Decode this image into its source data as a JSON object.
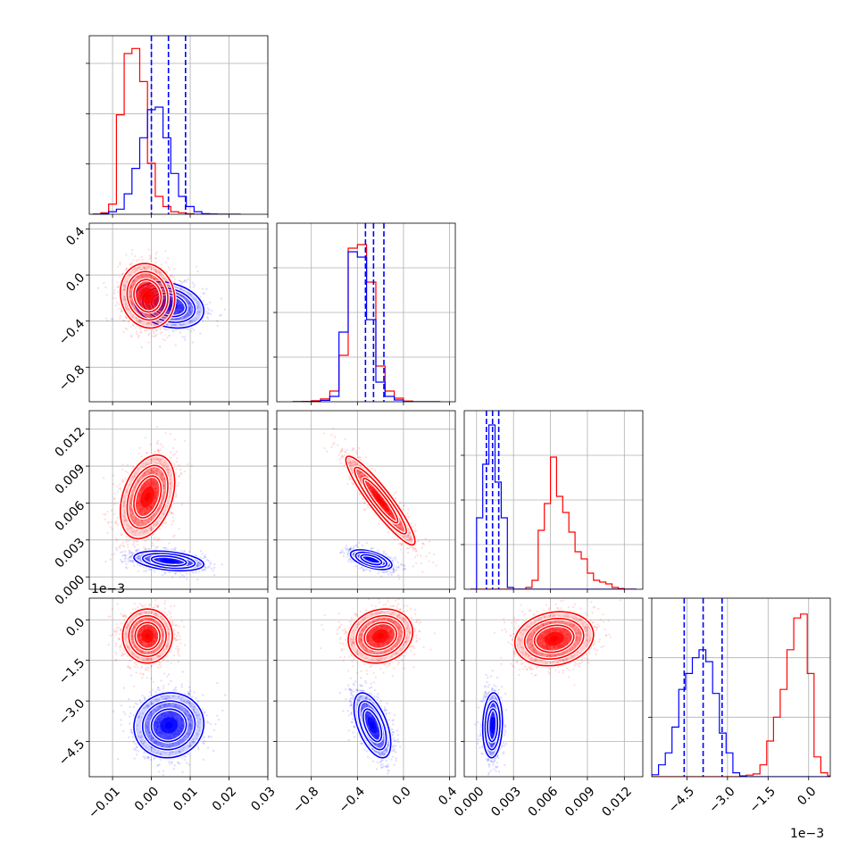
{
  "chart_data": {
    "type": "corner",
    "colors": {
      "series_a": "#ff0000",
      "series_b": "#0000ff",
      "grid": "#b0b0b0"
    },
    "offset_labels": {
      "row3": "1e−3",
      "col3": "1e−3"
    },
    "params": [
      {
        "range": [
          -0.016,
          0.03
        ],
        "ticks": [
          -0.01,
          0.0,
          0.01,
          0.02,
          0.03
        ],
        "tick_labels": [
          "−0.01",
          "0.00",
          "0.01",
          "0.02",
          "0.03"
        ]
      },
      {
        "range": [
          -1.1,
          0.45
        ],
        "ticks": [
          -0.8,
          -0.4,
          0.0,
          0.4
        ],
        "tick_labels": [
          "−0.8",
          "−0.4",
          "0.0",
          "0.4"
        ]
      },
      {
        "range": [
          -0.001,
          0.0135
        ],
        "ticks": [
          0.0,
          0.003,
          0.006,
          0.009,
          0.012
        ],
        "tick_labels": [
          "0.000",
          "0.003",
          "0.006",
          "0.009",
          "0.012"
        ]
      },
      {
        "range": [
          -0.0058,
          0.0008
        ],
        "ticks": [
          -0.0045,
          -0.003,
          -0.0015,
          0.0
        ],
        "tick_labels": [
          "−4.5",
          "−3.0",
          "−1.5",
          "0.0"
        ]
      }
    ],
    "diagonal": [
      {
        "lines": [
          0.0,
          0.0044,
          0.0088
        ],
        "bins": [
          -0.015,
          -0.013,
          -0.011,
          -0.009,
          -0.007,
          -0.005,
          -0.003,
          -0.001,
          0.001,
          0.003,
          0.005,
          0.007,
          0.009,
          0.011,
          0.013,
          0.015,
          0.017,
          0.019,
          0.021,
          0.023
        ],
        "series_a": [
          0.005,
          0.03,
          0.2,
          1.95,
          3.15,
          3.25,
          2.6,
          1.0,
          0.35,
          0.15,
          0.05,
          0.03,
          0.01,
          0.0,
          0.0,
          0.0,
          0.0,
          0.0,
          0.0
        ],
        "series_b": [
          0.0,
          0.01,
          0.05,
          0.1,
          0.4,
          0.9,
          1.5,
          2.05,
          2.1,
          1.5,
          0.8,
          0.35,
          0.15,
          0.05,
          0.01,
          0.005,
          0.0,
          0.0,
          0.0
        ],
        "ymax": 3.5
      },
      {
        "lines": [
          -0.33,
          -0.26,
          -0.17
        ],
        "bins": [
          -0.96,
          -0.88,
          -0.8,
          -0.72,
          -0.64,
          -0.56,
          -0.48,
          -0.4,
          -0.32,
          -0.24,
          -0.16,
          -0.08,
          0.0,
          0.08,
          0.16,
          0.24,
          0.32
        ],
        "series_a": [
          0.005,
          0.01,
          0.03,
          0.08,
          0.3,
          1.3,
          4.3,
          4.4,
          3.35,
          1.0,
          0.3,
          0.1,
          0.02,
          0.0,
          0.0,
          0.0
        ],
        "series_b": [
          0.0,
          0.0,
          0.01,
          0.04,
          0.15,
          1.95,
          4.2,
          4.05,
          2.3,
          0.55,
          0.15,
          0.05,
          0.0,
          0.0,
          0.0,
          0.0
        ],
        "ymax": 5.0
      },
      {
        "lines": [
          0.0008,
          0.0013,
          0.0018
        ],
        "bins": [
          -0.0005,
          0.0,
          0.0005,
          0.001,
          0.0015,
          0.002,
          0.0025,
          0.003,
          0.0035,
          0.004,
          0.0045,
          0.005,
          0.0055,
          0.006,
          0.0065,
          0.007,
          0.0075,
          0.008,
          0.0085,
          0.009,
          0.0095,
          0.01,
          0.0105,
          0.011,
          0.0115,
          0.012,
          0.0125,
          0.013
        ],
        "series_a": [
          0.0,
          0.0,
          0.0,
          0.0,
          0.0,
          0.0,
          0.0,
          0.0,
          0.0,
          0.05,
          0.25,
          1.65,
          2.4,
          3.7,
          2.6,
          2.15,
          1.6,
          1.05,
          0.85,
          0.45,
          0.25,
          0.2,
          0.15,
          0.05,
          0.02,
          0.0,
          0.0
        ],
        "series_b": [
          0.0,
          2.0,
          3.5,
          4.6,
          3.0,
          2.0,
          0.05,
          0.0,
          0.0,
          0.0,
          0.0,
          0.0,
          0.0,
          0.0,
          0.0,
          0.0,
          0.0,
          0.0,
          0.0,
          0.0,
          0.0,
          0.0,
          0.0,
          0.0,
          0.0,
          0.0,
          0.0
        ],
        "ymax": 5.0
      },
      {
        "lines": [
          -0.0046,
          -0.0039,
          -0.0032
        ],
        "bins": [
          -0.0058,
          -0.00555,
          -0.0053,
          -0.00505,
          -0.0048,
          -0.00455,
          -0.0043,
          -0.00405,
          -0.0038,
          -0.00355,
          -0.0033,
          -0.00305,
          -0.0028,
          -0.00255,
          -0.0023,
          -0.00205,
          -0.0018,
          -0.00155,
          -0.0013,
          -0.00105,
          -0.0008,
          -0.00055,
          -0.0003,
          -5e-05,
          0.0002,
          0.00045,
          0.0007,
          0.00095
        ],
        "series_a": [
          0.0,
          0.0,
          0.0,
          0.0,
          0.0,
          0.0,
          0.0,
          0.0,
          0.0,
          0.0,
          0.0,
          0.0,
          0.0,
          0.01,
          0.04,
          0.07,
          0.3,
          0.9,
          1.5,
          2.2,
          3.2,
          4.0,
          4.1,
          2.6,
          0.5,
          0.1,
          0.02
        ],
        "series_b": [
          0.05,
          0.3,
          0.6,
          1.25,
          2.2,
          2.6,
          3.0,
          3.2,
          2.9,
          2.1,
          1.1,
          0.6,
          0.1,
          0.02,
          0.0,
          0.0,
          0.0,
          0.0,
          0.0,
          0.0,
          0.0,
          0.0,
          0.0,
          0.0,
          0.0,
          0.0,
          0.0
        ],
        "ymax": 4.5
      }
    ],
    "pairs": [
      {
        "row": 1,
        "col": 0,
        "series_a": {
          "mean": [
            -0.001,
            -0.18
          ],
          "std": [
            0.0035,
            0.14
          ],
          "rho": -0.1
        },
        "series_b": {
          "mean": [
            0.0045,
            -0.26
          ],
          "std": [
            0.0045,
            0.1
          ],
          "rho": -0.25
        }
      },
      {
        "row": 2,
        "col": 0,
        "series_a": {
          "mean": [
            -0.001,
            0.0065
          ],
          "std": [
            0.0035,
            0.0017
          ],
          "rho": 0.35
        },
        "series_b": {
          "mean": [
            0.0045,
            0.0013
          ],
          "std": [
            0.0045,
            0.0004
          ],
          "rho": -0.35
        }
      },
      {
        "row": 2,
        "col": 1,
        "series_a": {
          "mean": [
            -0.2,
            0.0062
          ],
          "std": [
            0.15,
            0.0018
          ],
          "rho": -0.92
        },
        "series_b": {
          "mean": [
            -0.28,
            0.0014
          ],
          "std": [
            0.09,
            0.0004
          ],
          "rho": -0.55
        }
      },
      {
        "row": 3,
        "col": 0,
        "series_a": {
          "mean": [
            -0.001,
            -0.0006
          ],
          "std": [
            0.0032,
            0.0005
          ],
          "rho": 0.0
        },
        "series_b": {
          "mean": [
            0.0045,
            -0.0039
          ],
          "std": [
            0.0045,
            0.0006
          ],
          "rho": 0.05
        }
      },
      {
        "row": 3,
        "col": 1,
        "series_a": {
          "mean": [
            -0.2,
            -0.0006
          ],
          "std": [
            0.14,
            0.0005
          ],
          "rho": 0.15
        },
        "series_b": {
          "mean": [
            -0.27,
            -0.0039
          ],
          "std": [
            0.08,
            0.0006
          ],
          "rho": -0.55
        }
      },
      {
        "row": 3,
        "col": 2,
        "series_a": {
          "mean": [
            0.0063,
            -0.0007
          ],
          "std": [
            0.0016,
            0.0005
          ],
          "rho": 0.15
        },
        "series_b": {
          "mean": [
            0.0013,
            -0.0039
          ],
          "std": [
            0.0004,
            0.0006
          ],
          "rho": 0.1
        }
      }
    ]
  }
}
